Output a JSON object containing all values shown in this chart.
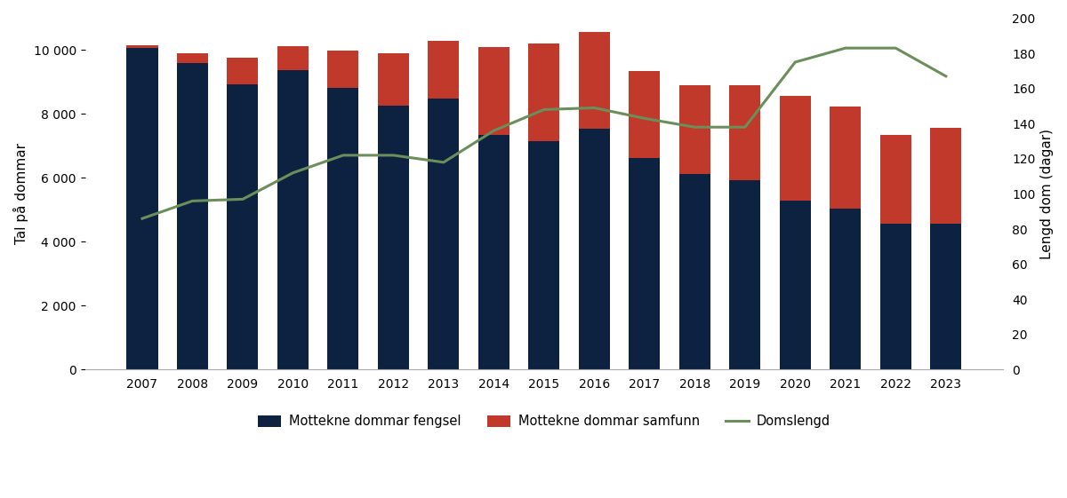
{
  "years": [
    2007,
    2008,
    2009,
    2010,
    2011,
    2012,
    2013,
    2014,
    2015,
    2016,
    2017,
    2018,
    2019,
    2020,
    2021,
    2022,
    2023
  ],
  "fengsel": [
    10060,
    9590,
    8930,
    9380,
    8820,
    8270,
    8480,
    7340,
    7160,
    7540,
    6630,
    6130,
    5940,
    5280,
    5030,
    4570,
    4570
  ],
  "samfunn": [
    100,
    300,
    820,
    750,
    1170,
    1620,
    1820,
    2760,
    3060,
    3020,
    2730,
    2770,
    2960,
    3290,
    3200,
    2780,
    3000
  ],
  "domslengd": [
    86,
    96,
    97,
    112,
    122,
    122,
    118,
    136,
    148,
    149,
    143,
    138,
    138,
    175,
    183,
    183,
    167
  ],
  "bar_color_fengsel": "#0d2240",
  "bar_color_samfunn": "#c0392b",
  "line_color": "#6a8f5a",
  "ylabel_left": "Tal på dommar",
  "ylabel_right": "Lengd dom (dagar)",
  "ylim_left": [
    0,
    11000
  ],
  "ylim_right": [
    0,
    200
  ],
  "yticks_left": [
    0,
    2000,
    4000,
    6000,
    8000,
    10000
  ],
  "yticks_right": [
    0,
    20,
    40,
    60,
    80,
    100,
    120,
    140,
    160,
    180,
    200
  ],
  "legend_labels": [
    "Mottekne dommar fengsel",
    "Mottekne dommar samfunn",
    "Domslengd"
  ],
  "background_color": "#ffffff"
}
